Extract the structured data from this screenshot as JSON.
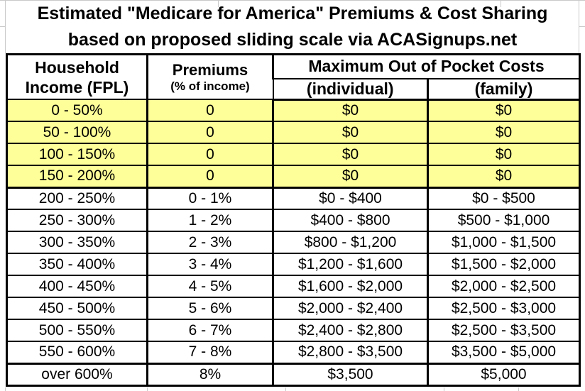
{
  "title": {
    "line1": "Estimated \"Medicare for America\" Premiums & Cost Sharing",
    "line2": "based on proposed sliding scale via ACASignups.net"
  },
  "chart_data": {
    "type": "table",
    "title": "Estimated \"Medicare for America\" Premiums & Cost Sharing",
    "subtitle": "based on proposed sliding scale via ACASignups.net",
    "source": "ACASignups.net",
    "columns": {
      "household_line1": "Household",
      "household_line2": "Income (FPL)",
      "premiums_main": "Premiums",
      "premiums_sub": "(% of income)",
      "moop": "Maximum Out of Pocket Costs",
      "moop_individual": "(individual)",
      "moop_family": "(family)"
    },
    "column_keys": [
      "income",
      "premium",
      "moop-individual",
      "moop-family"
    ],
    "rows": [
      [
        "0 - 50%",
        "0",
        "$0",
        "$0"
      ],
      [
        "50 - 100%",
        "0",
        "$0",
        "$0"
      ],
      [
        "100 - 150%",
        "0",
        "$0",
        "$0"
      ],
      [
        "150 - 200%",
        "0",
        "$0",
        "$0"
      ],
      [
        "200 - 250%",
        "0 - 1%",
        "$0 - $400",
        "$0 - $500"
      ],
      [
        "250 - 300%",
        "1 - 2%",
        "$400 - $800",
        "$500 - $1,000"
      ],
      [
        "300 - 350%",
        "2 - 3%",
        "$800 - $1,200",
        "$1,000 - $1,500"
      ],
      [
        "350 - 400%",
        "3 - 4%",
        "$1,200 - $1,600",
        "$1,500 - $2,000"
      ],
      [
        "400 - 450%",
        "4 - 5%",
        "$1,600 - $2,000",
        "$2,000 - $2,500"
      ],
      [
        "450 - 500%",
        "5 - 6%",
        "$2,000 - $2,400",
        "$2,500 - $3,000"
      ],
      [
        "500 - 550%",
        "6 - 7%",
        "$2,400 - $2,800",
        "$2,500 - $3,500"
      ],
      [
        "550 - 600%",
        "7 - 8%",
        "$2,800 - $3,500",
        "$3,500 - $5,000"
      ],
      [
        "over 600%",
        "8%",
        "$3,500",
        "$5,000"
      ]
    ],
    "highlighted_row_indices": [
      0,
      1,
      2,
      3
    ],
    "section_break_after_rows": [
      3,
      11
    ],
    "highlight_color": "#FFFF99"
  },
  "colors": {
    "background": "#FFFFFF",
    "border": "#000000",
    "text": "#000000",
    "highlight_row": "#FFFF99",
    "gridline": "#C9C9C9"
  }
}
